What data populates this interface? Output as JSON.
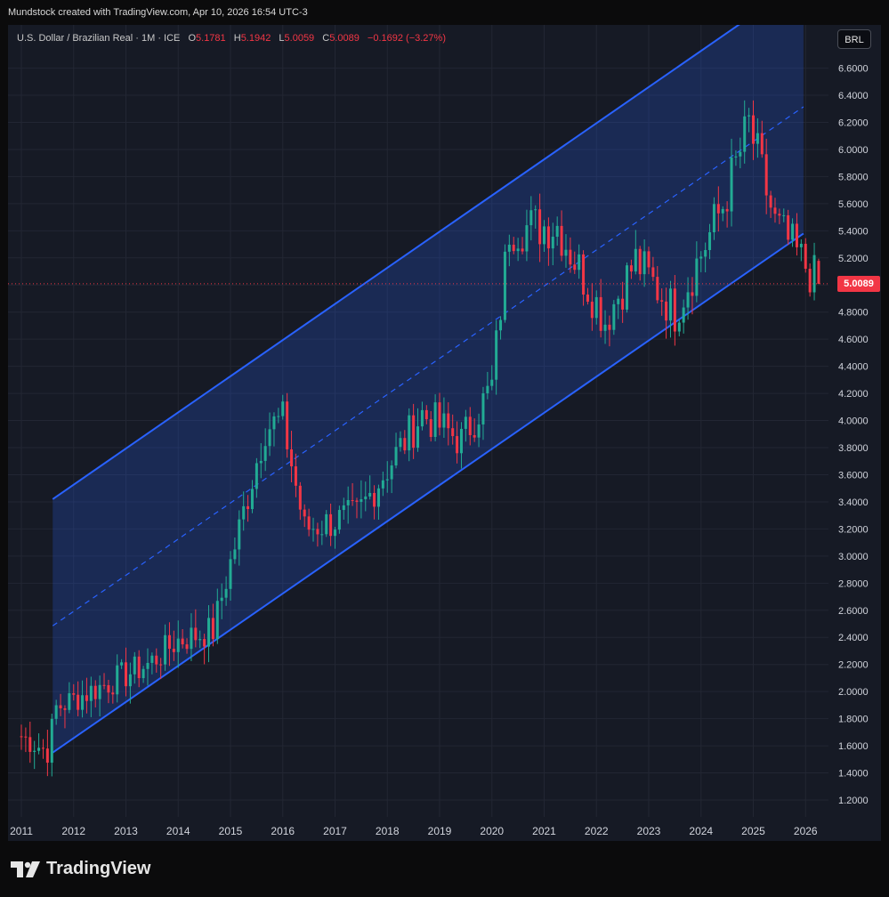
{
  "header": {
    "text": "Mundstock created with TradingView.com, Apr 10, 2026 16:54 UTC-3"
  },
  "legend": {
    "symbol": "U.S. Dollar / Brazilian Real · 1M · ICE",
    "o_label": "O",
    "o_value": "5.1781",
    "h_label": "H",
    "h_value": "5.1942",
    "l_label": "L",
    "l_value": "5.0059",
    "c_label": "C",
    "c_value": "5.0089",
    "change": "−0.1692 (−3.27%)"
  },
  "currency_button": "BRL",
  "last_price": "5.0089",
  "brand": "TradingView",
  "colors": {
    "up": "#22ab94",
    "down": "#f23645",
    "channel": "#2962ff",
    "background": "#161a25"
  },
  "chart_data": {
    "type": "candlestick",
    "timeframe": "1M",
    "x_ticks": [
      "2011",
      "2012",
      "2013",
      "2014",
      "2015",
      "2016",
      "2017",
      "2018",
      "2019",
      "2020",
      "2021",
      "2022",
      "2023",
      "2024",
      "2025",
      "2026"
    ],
    "y_ticks": [
      "1.2000",
      "1.4000",
      "1.6000",
      "1.8000",
      "2.0000",
      "2.2000",
      "2.4000",
      "2.6000",
      "2.8000",
      "3.0000",
      "3.2000",
      "3.4000",
      "3.6000",
      "3.8000",
      "4.0000",
      "4.2000",
      "4.4000",
      "4.6000",
      "4.8000",
      "5.0000",
      "5.2000",
      "5.4000",
      "5.6000",
      "5.8000",
      "6.0000",
      "6.2000",
      "6.4000",
      "6.6000"
    ],
    "ylim": [
      1.1,
      6.8
    ],
    "xlim": [
      2010.8,
      2026.6
    ],
    "key_points": [
      {
        "t": "2011-01",
        "close": 1.67
      },
      {
        "t": "2011-07",
        "close": 1.56
      },
      {
        "t": "2011-09",
        "close": 1.88
      },
      {
        "t": "2012-06",
        "close": 2.02
      },
      {
        "t": "2013-06",
        "close": 2.2
      },
      {
        "t": "2014-01",
        "close": 2.38
      },
      {
        "t": "2014-09",
        "close": 2.45
      },
      {
        "t": "2015-03",
        "close": 3.2
      },
      {
        "t": "2015-09",
        "close": 3.95
      },
      {
        "t": "2016-01",
        "close": 4.0
      },
      {
        "t": "2016-06",
        "close": 3.2
      },
      {
        "t": "2017-06",
        "close": 3.3
      },
      {
        "t": "2018-09",
        "close": 4.05
      },
      {
        "t": "2019-06",
        "close": 3.85
      },
      {
        "t": "2020-01",
        "close": 4.25
      },
      {
        "t": "2020-05",
        "close": 5.42
      },
      {
        "t": "2021-04",
        "close": 5.44
      },
      {
        "t": "2022-03",
        "close": 4.74
      },
      {
        "t": "2022-10",
        "close": 5.18
      },
      {
        "t": "2023-07",
        "close": 4.8
      },
      {
        "t": "2024-06",
        "close": 5.59
      },
      {
        "t": "2024-12",
        "close": 6.18
      },
      {
        "t": "2025-06",
        "close": 5.45
      },
      {
        "t": "2026-04",
        "close": 5.0089
      }
    ],
    "last_candle": {
      "open": 5.1781,
      "high": 5.1942,
      "low": 5.0059,
      "close": 5.0089
    },
    "channel": {
      "lower": {
        "start": {
          "t": 2011.6,
          "price": 1.55
        },
        "end": {
          "t": 2025.96,
          "price": 5.38
        }
      },
      "upper": {
        "start": {
          "t": 2011.6,
          "price": 3.42
        },
        "end": {
          "t": 2025.96,
          "price": 7.25
        }
      },
      "midline": "dashed",
      "fill": "blue"
    },
    "last_price_line": 5.0089
  }
}
